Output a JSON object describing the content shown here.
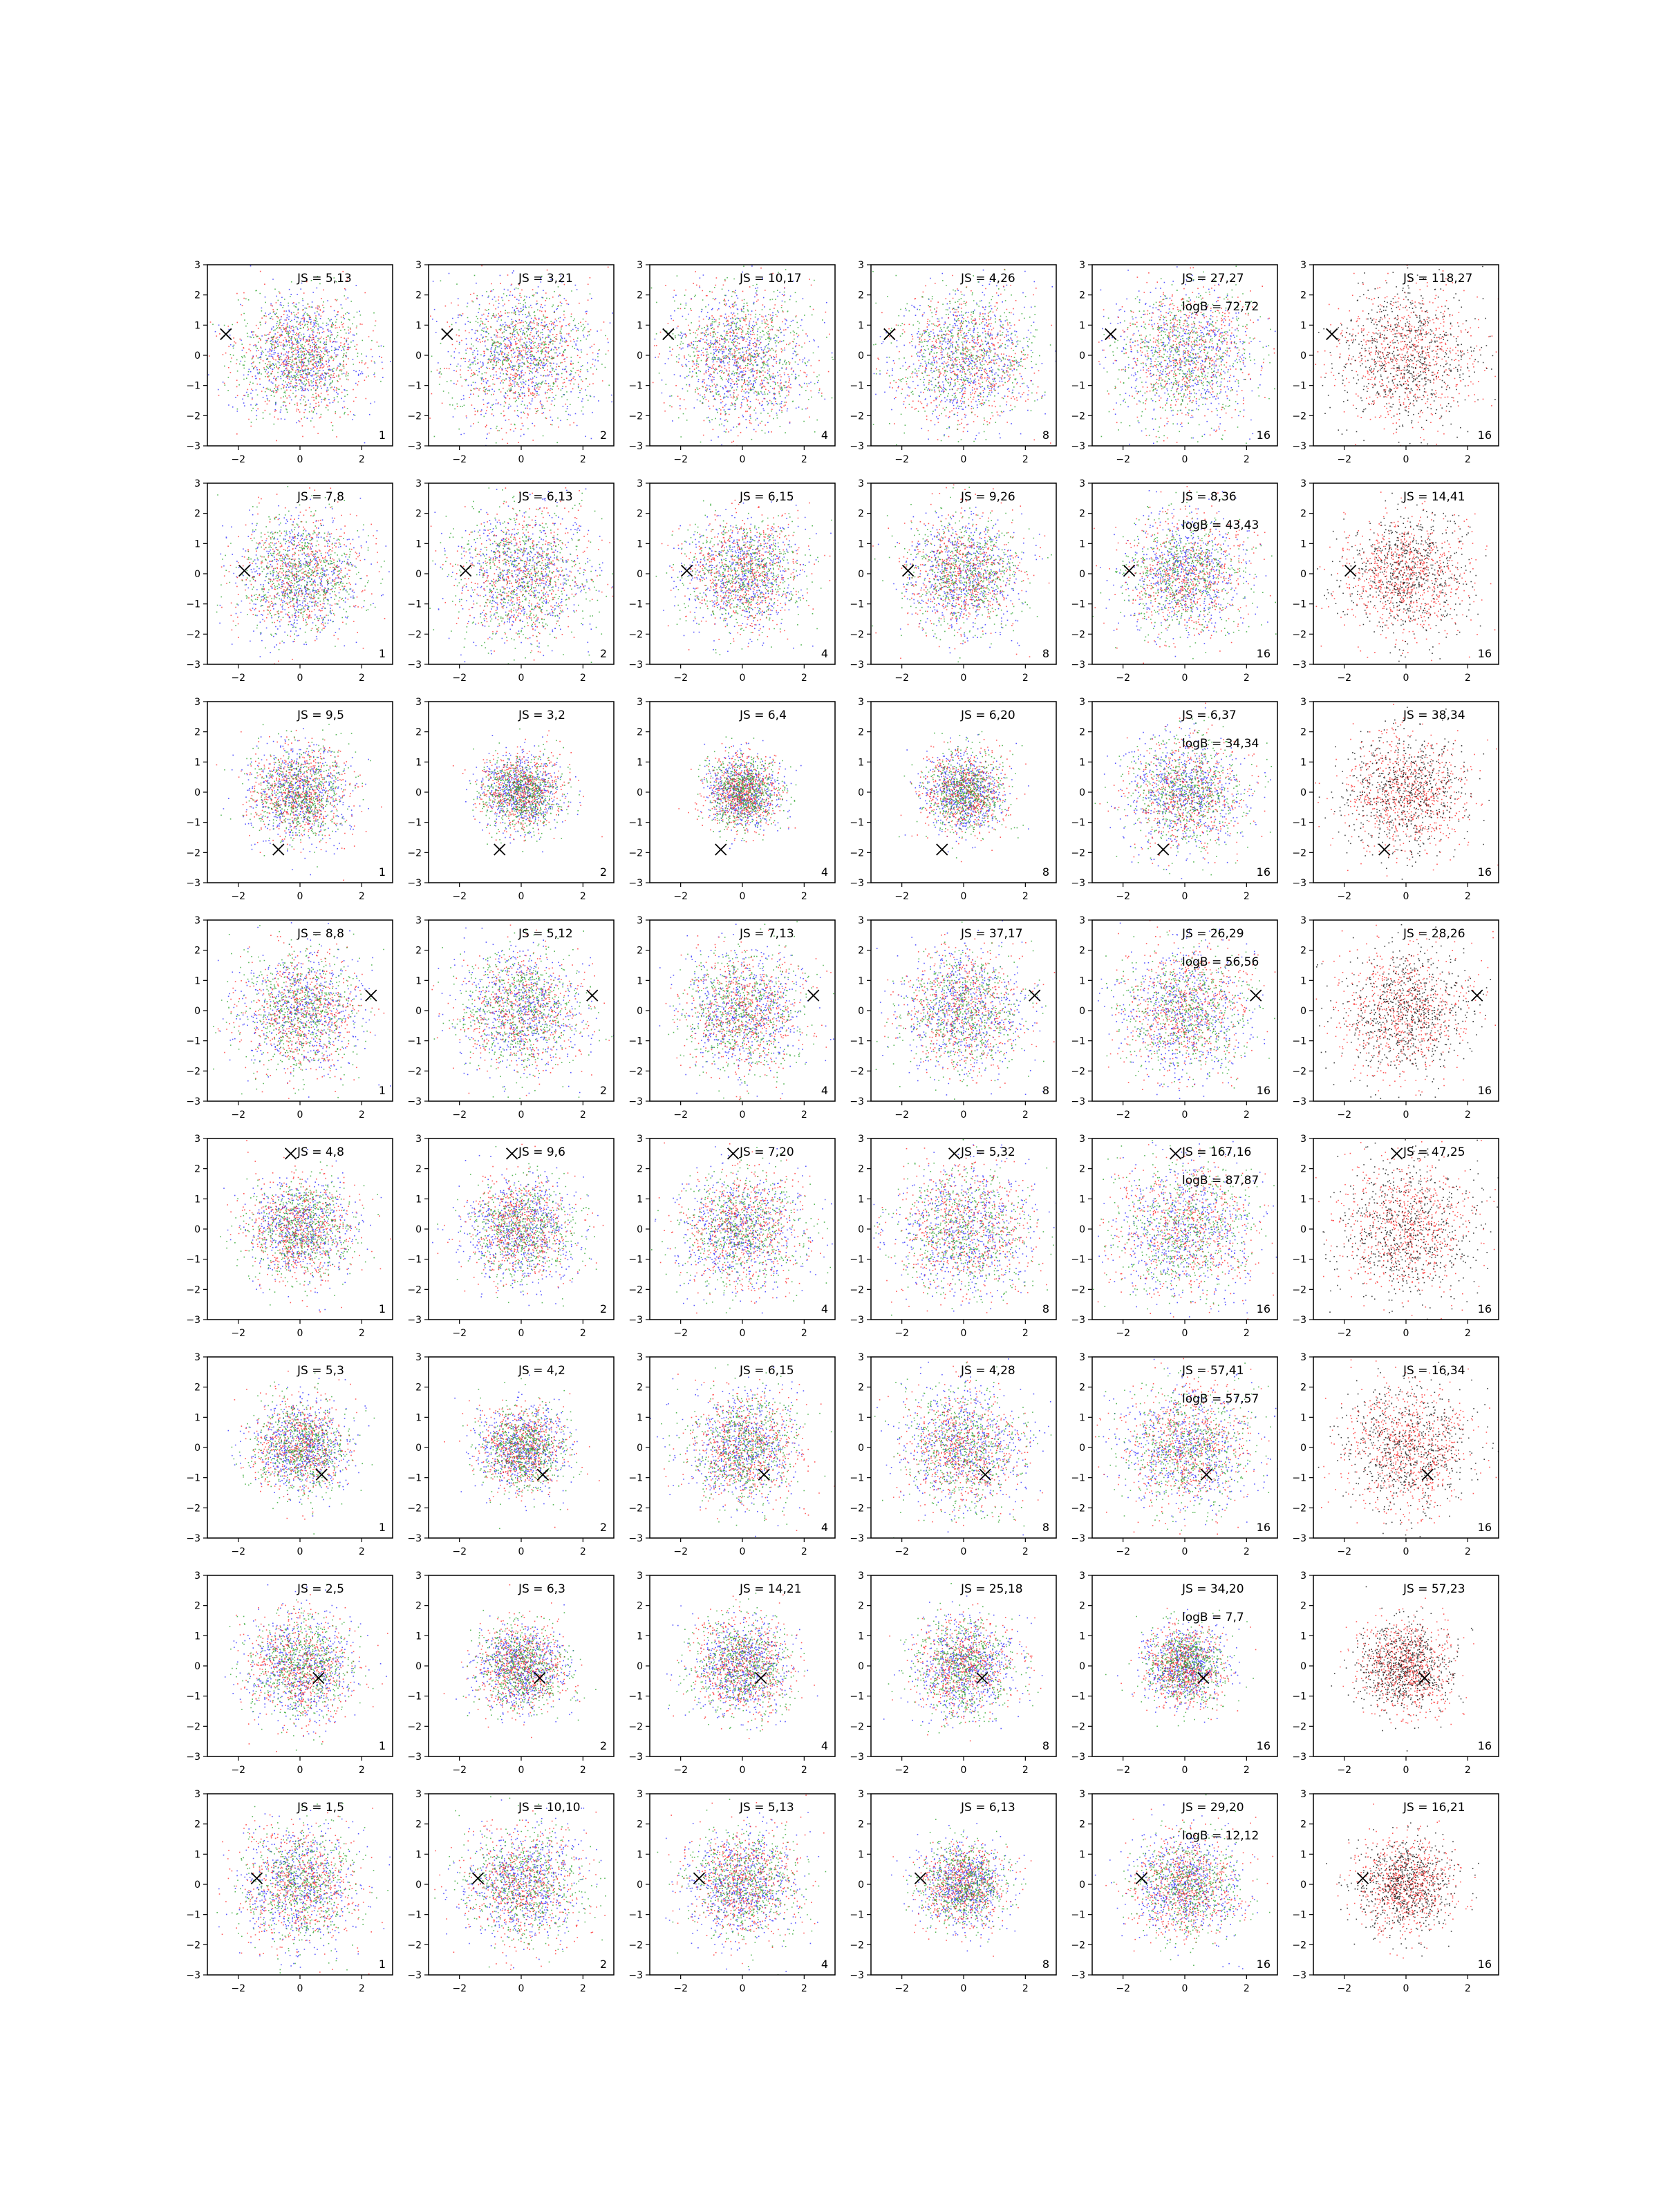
{
  "figure": {
    "rows": 8,
    "cols": 6,
    "series_colors": [
      "#1f1fff",
      "#ff1f1f",
      "#1f9f1f",
      "#000000"
    ]
  },
  "chart_data": {
    "type": "scatter",
    "shared_axes": {
      "xlim": [
        -3,
        3
      ],
      "ylim": [
        -3,
        3
      ],
      "xticks": [
        -2,
        0,
        2
      ],
      "yticks": [
        -3,
        -2,
        -1,
        0,
        1,
        2,
        3
      ],
      "grid": false
    },
    "column_labels": [
      "1",
      "2",
      "4",
      "8",
      "16",
      "16"
    ],
    "rows": [
      {
        "marker": [
          -2.4,
          0.7
        ],
        "panels": [
          {
            "js": "JS = 5,13",
            "spread": 1.0
          },
          {
            "js": "JS = 3,21",
            "spread": 1.15
          },
          {
            "js": "JS = 10,17",
            "spread": 1.15
          },
          {
            "js": "JS = 4,26",
            "spread": 1.15
          },
          {
            "js": "JS = 27,27",
            "logb": "logB = 72,72",
            "spread": 1.15
          },
          {
            "js": "JS = 118,27",
            "spread": 1.15
          }
        ]
      },
      {
        "marker": [
          -1.8,
          0.1
        ],
        "panels": [
          {
            "js": "JS = 7,8",
            "spread": 1.0
          },
          {
            "js": "JS = 6,13",
            "spread": 1.1
          },
          {
            "js": "JS = 6,15",
            "spread": 0.95
          },
          {
            "js": "JS = 9,26",
            "spread": 0.95
          },
          {
            "js": "JS = 8,36",
            "logb": "logB = 43,43",
            "spread": 1.0
          },
          {
            "js": "JS = 14,41",
            "spread": 1.0
          }
        ]
      },
      {
        "marker": [
          -0.7,
          -1.9
        ],
        "panels": [
          {
            "js": "JS = 9,5",
            "spread": 0.8
          },
          {
            "js": "JS = 3,2",
            "spread": 0.65
          },
          {
            "js": "JS = 6,4",
            "spread": 0.6
          },
          {
            "js": "JS = 6,20",
            "spread": 0.65
          },
          {
            "js": "JS = 6,37",
            "logb": "logB = 34,34",
            "spread": 0.95
          },
          {
            "js": "JS = 38,34",
            "spread": 1.0
          }
        ]
      },
      {
        "marker": [
          2.3,
          0.5
        ],
        "panels": [
          {
            "js": "JS = 8,8",
            "spread": 1.0
          },
          {
            "js": "JS = 5,12",
            "spread": 1.0
          },
          {
            "js": "JS = 7,13",
            "spread": 1.0
          },
          {
            "js": "JS = 37,17",
            "spread": 1.0
          },
          {
            "js": "JS = 26,29",
            "logb": "logB = 56,56",
            "spread": 1.05
          },
          {
            "js": "JS = 28,26",
            "spread": 1.05
          }
        ]
      },
      {
        "marker": [
          -0.3,
          2.5
        ],
        "panels": [
          {
            "js": "JS = 4,8",
            "spread": 0.85
          },
          {
            "js": "JS = 9,6",
            "spread": 0.85
          },
          {
            "js": "JS = 7,20",
            "spread": 1.0
          },
          {
            "js": "JS = 5,32",
            "spread": 1.1
          },
          {
            "js": "JS = 167,16",
            "logb": "logB = 87,87",
            "spread": 1.15
          },
          {
            "js": "JS = 47,25",
            "spread": 1.15
          }
        ]
      },
      {
        "marker": [
          0.7,
          -0.9
        ],
        "panels": [
          {
            "js": "JS = 5,3",
            "spread": 0.75
          },
          {
            "js": "JS = 4,2",
            "spread": 0.7
          },
          {
            "js": "JS = 6,15",
            "spread": 0.9
          },
          {
            "js": "JS = 4,28",
            "spread": 1.0
          },
          {
            "js": "JS = 57,41",
            "logb": "logB = 57,57",
            "spread": 1.05
          },
          {
            "js": "JS = 16,34",
            "spread": 1.05
          }
        ]
      },
      {
        "marker": [
          0.6,
          -0.4
        ],
        "panels": [
          {
            "js": "JS = 2,5",
            "spread": 0.85
          },
          {
            "js": "JS = 6,3",
            "spread": 0.7
          },
          {
            "js": "JS = 14,21",
            "spread": 0.8
          },
          {
            "js": "JS = 25,18",
            "spread": 0.8
          },
          {
            "js": "JS = 34,20",
            "logb": "logB = 7,7",
            "spread": 0.65
          },
          {
            "js": "JS = 57,23",
            "spread": 0.75
          }
        ]
      },
      {
        "marker": [
          -1.4,
          0.2
        ],
        "panels": [
          {
            "js": "JS = 1,5",
            "spread": 1.0
          },
          {
            "js": "JS = 10,10",
            "spread": 0.95
          },
          {
            "js": "JS = 5,13",
            "spread": 0.9
          },
          {
            "js": "JS = 6,13",
            "spread": 0.7
          },
          {
            "js": "JS = 29,20",
            "logb": "logB = 12,12",
            "spread": 0.85
          },
          {
            "js": "JS = 16,21",
            "spread": 0.8
          }
        ]
      }
    ]
  }
}
